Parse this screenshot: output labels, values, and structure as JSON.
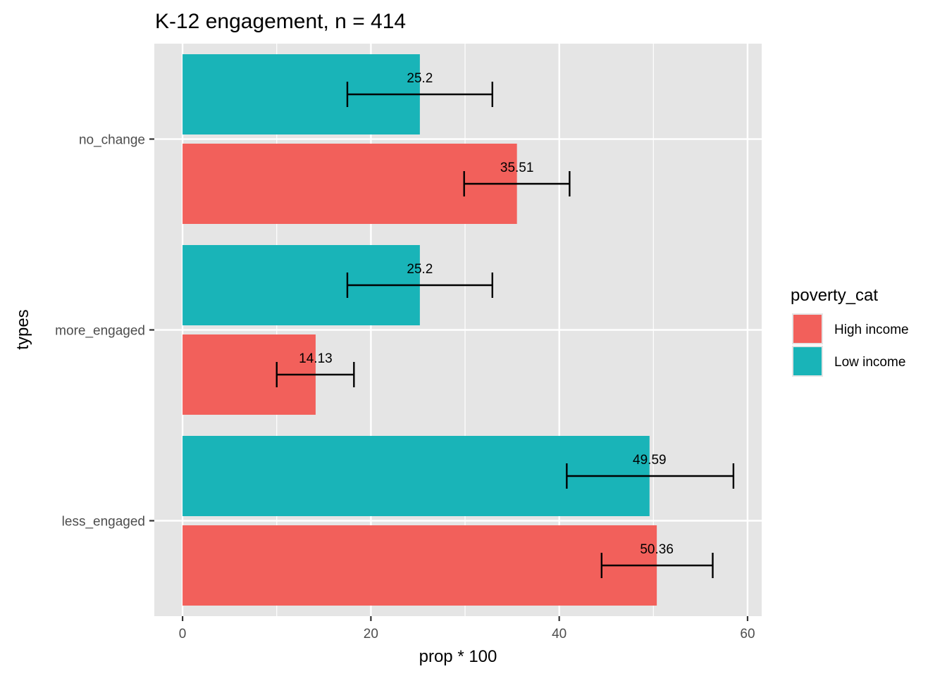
{
  "chart_data": {
    "type": "bar",
    "orientation": "horizontal",
    "title": "K-12 engagement, n = 414",
    "xlabel": "prop * 100",
    "ylabel": "types",
    "xlim": [
      -3,
      61.5
    ],
    "x_ticks": [
      0,
      20,
      40,
      60
    ],
    "categories": [
      "no_change",
      "more_engaged",
      "less_engaged"
    ],
    "series": [
      {
        "name": "Low income",
        "color": "#19B4B8",
        "values": [
          25.2,
          25.2,
          49.59
        ],
        "error_low": [
          17.5,
          17.5,
          40.8
        ],
        "error_high": [
          32.9,
          32.9,
          58.5
        ],
        "labels": [
          "25.2",
          "25.2",
          "49.59"
        ]
      },
      {
        "name": "High income",
        "color": "#F2605B",
        "values": [
          35.51,
          14.13,
          50.36
        ],
        "error_low": [
          29.9,
          10.0,
          44.5
        ],
        "error_high": [
          41.1,
          18.2,
          56.3
        ],
        "labels": [
          "35.51",
          "14.13",
          "50.36"
        ]
      }
    ],
    "legend": {
      "title": "poverty_cat",
      "position": "right",
      "entries": [
        {
          "label": "High income",
          "color": "#F2605B"
        },
        {
          "label": "Low income",
          "color": "#19B4B8"
        }
      ]
    },
    "grid": true,
    "panel_background": "#E5E5E5",
    "grid_color": "#FFFFFF"
  }
}
